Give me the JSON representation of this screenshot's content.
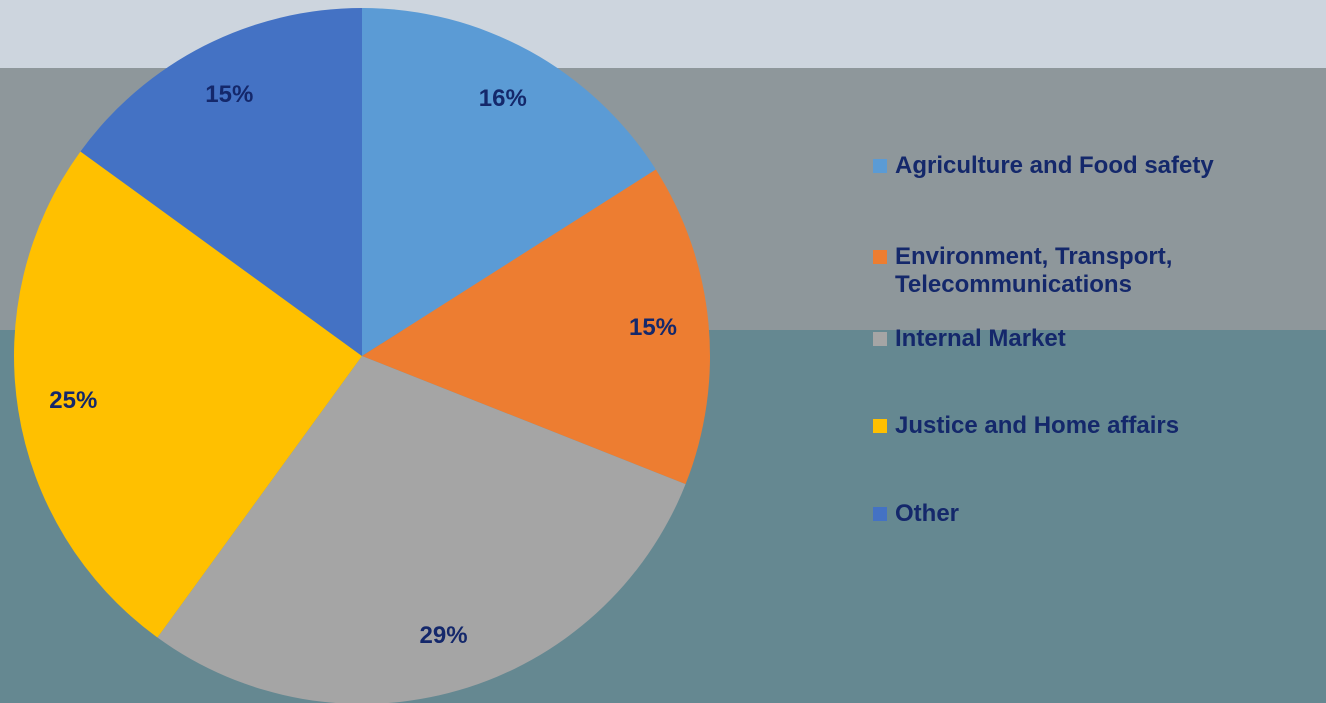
{
  "chart_data": {
    "type": "pie",
    "categories": [
      "Agriculture and Food safety",
      "Environment, Transport, Telecommunications",
      "Internal Market",
      "Justice and Home affairs",
      "Other"
    ],
    "values": [
      16,
      15,
      29,
      25,
      15
    ],
    "value_labels": [
      "16%",
      "15%",
      "29%",
      "25%",
      "15%"
    ],
    "colors": [
      "#5b9bd5",
      "#ed7d31",
      "#a5a5a5",
      "#ffc000",
      "#4472c4"
    ],
    "legend": "right"
  }
}
